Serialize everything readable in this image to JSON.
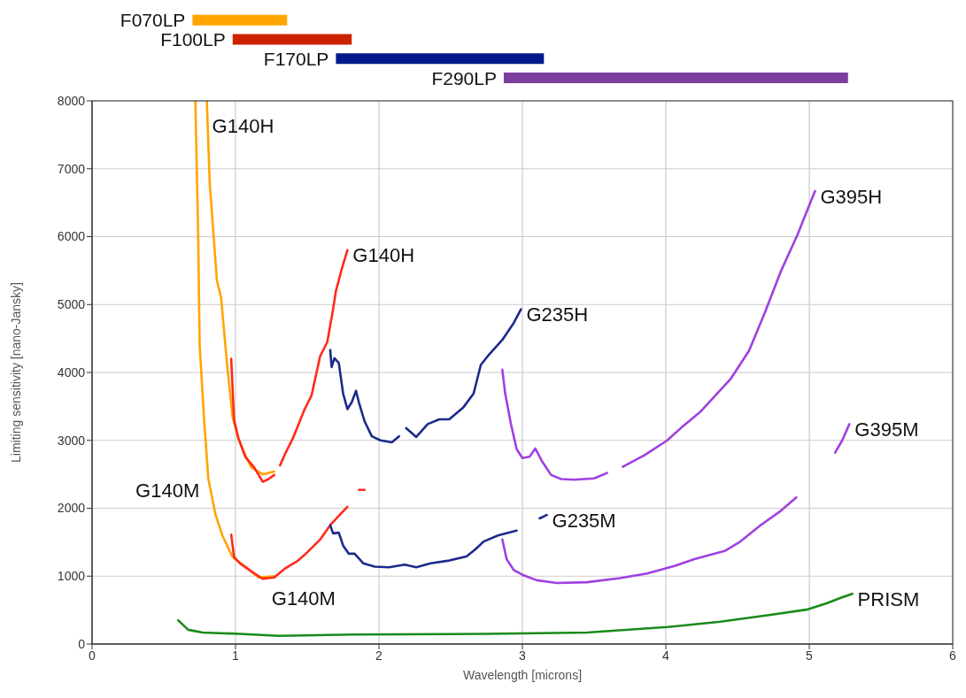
{
  "chart_data": [
    {
      "type": "bar",
      "orientation": "horizontal",
      "categories": [
        "F070LP",
        "F100LP",
        "F170LP",
        "F290LP"
      ],
      "base": [
        0.7,
        0.98,
        1.7,
        2.87
      ],
      "values": [
        0.66,
        0.83,
        1.45,
        2.4
      ],
      "colors": [
        "#ffa500",
        "#cc2200",
        "#001a8c",
        "#7a3e9d"
      ],
      "xlim": [
        0,
        6
      ],
      "tick_labels": false
    },
    {
      "type": "line",
      "xlabel": "Wavelength [microns]",
      "ylabel": "Limiting sensitivity [nano-Jansky]",
      "xlim": [
        0,
        6
      ],
      "xticks": [
        0,
        1,
        2,
        3,
        4,
        5,
        6
      ],
      "ylim": [
        0,
        8000
      ],
      "yticks": [
        0,
        1000,
        2000,
        3000,
        4000,
        5000,
        6000,
        7000,
        8000
      ],
      "grid": true,
      "series": [
        {
          "name": "G140H",
          "color": "#ffa500",
          "x": [
            0.8,
            0.82,
            0.87,
            0.9,
            0.94,
            0.98,
            1.02,
            1.06,
            1.11,
            1.19,
            1.27
          ],
          "values": [
            8000,
            6790,
            5360,
            5090,
            4140,
            3340,
            3030,
            2820,
            2600,
            2500,
            2540
          ]
        },
        {
          "name": "G140M",
          "color": "#ffa500",
          "x": [
            0.72,
            0.74,
            0.75,
            0.78,
            0.81,
            0.86,
            0.91,
            0.98,
            1.08,
            1.16,
            1.27
          ],
          "values": [
            8000,
            5990,
            4400,
            3340,
            2440,
            1910,
            1590,
            1280,
            1120,
            980,
            1000
          ]
        },
        {
          "name": "G140H",
          "color": "#ff2a1a",
          "x": [
            0.97,
            0.99,
            1.02,
            1.07,
            1.13,
            1.19,
            1.23,
            1.27,
            1.29,
            1.31,
            1.35,
            1.4,
            1.48,
            1.53,
            1.59,
            1.64,
            1.68,
            1.7,
            1.74,
            1.78,
            1.82,
            1.86,
            1.9
          ],
          "values": [
            4200,
            3300,
            3030,
            2750,
            2600,
            2390,
            2430,
            2490,
            null,
            2630,
            2820,
            3030,
            3450,
            3660,
            4240,
            4450,
            4930,
            5200,
            5520,
            5800,
            null,
            2270,
            2270
          ]
        },
        {
          "name": "G140M",
          "color": "#ff2a1a",
          "x": [
            0.97,
            0.99,
            1.03,
            1.11,
            1.19,
            1.27,
            1.35,
            1.43,
            1.49,
            1.59,
            1.66,
            1.73,
            1.78
          ],
          "values": [
            1610,
            1280,
            1190,
            1070,
            960,
            980,
            1120,
            1220,
            1330,
            1540,
            1750,
            1910,
            2020
          ]
        },
        {
          "name": "G235H",
          "color": "#1c2a8c",
          "x": [
            1.66,
            1.67,
            1.69,
            1.72,
            1.75,
            1.78,
            1.81,
            1.84,
            1.86,
            1.9,
            1.95,
            2.01,
            2.09,
            2.14,
            2.16,
            2.19,
            2.26,
            2.34,
            2.42,
            2.49,
            2.59,
            2.66,
            2.71,
            2.77,
            2.86,
            2.94,
            2.99
          ],
          "values": [
            4330,
            4080,
            4210,
            4140,
            3690,
            3460,
            3560,
            3730,
            3560,
            3280,
            3060,
            3000,
            2970,
            3060,
            null,
            3180,
            3050,
            3240,
            3310,
            3310,
            3490,
            3690,
            4110,
            4270,
            4480,
            4730,
            4930
          ]
        },
        {
          "name": "G235M",
          "color": "#1c2a8c",
          "x": [
            1.66,
            1.68,
            1.72,
            1.75,
            1.79,
            1.83,
            1.89,
            1.97,
            2.07,
            2.18,
            2.26,
            2.36,
            2.49,
            2.61,
            2.67,
            2.73,
            2.83,
            2.96,
            3.04,
            3.12,
            3.17
          ],
          "values": [
            1750,
            1630,
            1640,
            1450,
            1330,
            1330,
            1190,
            1140,
            1130,
            1170,
            1130,
            1190,
            1230,
            1290,
            1390,
            1510,
            1600,
            1670,
            null,
            1850,
            1900
          ]
        },
        {
          "name": "G395H",
          "color": "#a040e0",
          "x": [
            2.86,
            2.88,
            2.92,
            2.96,
            3.0,
            3.05,
            3.09,
            3.14,
            3.2,
            3.27,
            3.36,
            3.5,
            3.59,
            3.65,
            3.7,
            3.85,
            4.01,
            4.12,
            4.24,
            4.45,
            4.58,
            4.69,
            4.8,
            4.92,
            4.99,
            5.04
          ],
          "values": [
            4040,
            3690,
            3240,
            2870,
            2740,
            2760,
            2880,
            2680,
            2490,
            2430,
            2420,
            2440,
            2520,
            null,
            2610,
            2780,
            3000,
            3210,
            3420,
            3900,
            4320,
            4880,
            5480,
            6040,
            6410,
            6670
          ]
        },
        {
          "name": "G395M",
          "color": "#a040e0",
          "x": [
            2.86,
            2.89,
            2.94,
            3.0,
            3.1,
            3.24,
            3.45,
            3.68,
            3.87,
            4.06,
            4.2,
            4.41,
            4.52,
            4.66,
            4.8,
            4.91,
            5.05,
            5.18,
            5.23,
            5.28
          ],
          "values": [
            1540,
            1250,
            1090,
            1020,
            940,
            900,
            910,
            970,
            1040,
            1150,
            1250,
            1370,
            1510,
            1750,
            1960,
            2160,
            null,
            2820,
            3000,
            3240
          ]
        },
        {
          "name": "PRISM",
          "color": "#1a8a1a",
          "x": [
            0.6,
            0.67,
            0.77,
            1.03,
            1.3,
            1.82,
            2.75,
            3.45,
            4.01,
            4.38,
            4.73,
            4.99,
            5.12,
            5.22,
            5.3
          ],
          "values": [
            350,
            210,
            170,
            150,
            120,
            140,
            150,
            170,
            250,
            330,
            430,
            510,
            600,
            680,
            740
          ]
        }
      ]
    }
  ]
}
